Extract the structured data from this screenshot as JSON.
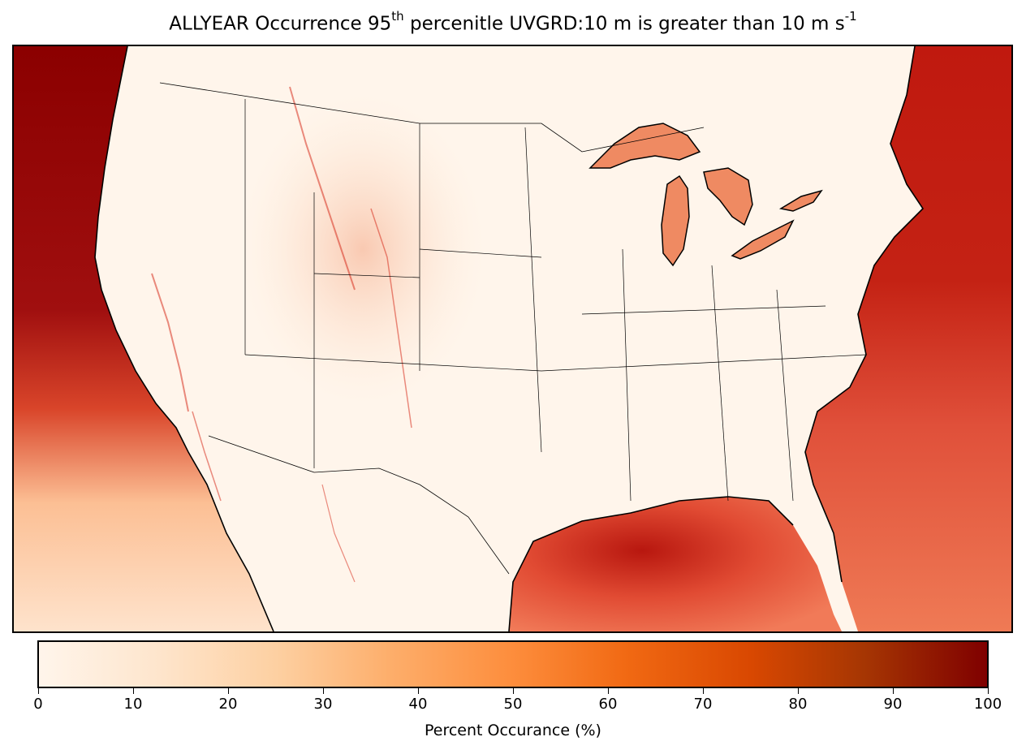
{
  "title": {
    "prefix": "ALLYEAR Occurrence 95",
    "sup1": "th",
    "middle": " percenitle UVGRD:10 m is greater than 10 m s",
    "sup2": "-1"
  },
  "colorbar": {
    "label": "Percent Occurance (%)",
    "ticks": [
      "0",
      "10",
      "20",
      "30",
      "40",
      "50",
      "60",
      "70",
      "80",
      "90",
      "100"
    ],
    "range": [
      0,
      100
    ],
    "colormap": [
      "#fff5eb",
      "#fee6ce",
      "#fdd0a2",
      "#fdae6b",
      "#fd8d3c",
      "#f16913",
      "#d94801",
      "#a63603",
      "#7f0000"
    ]
  },
  "map": {
    "region": "Contiguous United States",
    "ocean_high_color": "#a50f15",
    "ocean_mid_color": "#e5563a",
    "land_low_color": "#fff5eb",
    "great_lakes_color": "#ef8a62"
  }
}
